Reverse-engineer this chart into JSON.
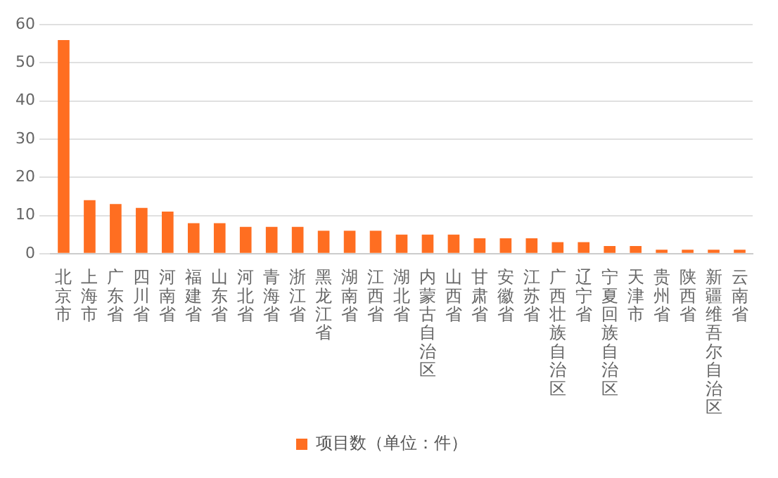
{
  "chart_data": {
    "type": "bar",
    "categories": [
      "北京市",
      "上海市",
      "广东省",
      "四川省",
      "河南省",
      "福建省",
      "山东省",
      "河北省",
      "青海省",
      "浙江省",
      "黑龙江省",
      "湖南省",
      "江西省",
      "湖北省",
      "内蒙古自治区",
      "山西省",
      "甘肃省",
      "安徽省",
      "江苏省",
      "广西壮族自治区",
      "辽宁省",
      "宁夏回族自治区",
      "天津市",
      "贵州省",
      "陕西省",
      "新疆维吾尔自治区",
      "云南省"
    ],
    "series": [
      {
        "name": "项目数（单位：件）",
        "color": "#ff6e21",
        "values": [
          56,
          14,
          13,
          12,
          11,
          8,
          8,
          7,
          7,
          7,
          6,
          6,
          6,
          5,
          5,
          5,
          4,
          4,
          4,
          3,
          3,
          2,
          2,
          1,
          1,
          1,
          1
        ]
      }
    ],
    "ylim": [
      0,
      60
    ],
    "yticks": [
      0,
      10,
      20,
      30,
      40,
      50,
      60
    ],
    "grid": "y",
    "legend": "bottom"
  }
}
